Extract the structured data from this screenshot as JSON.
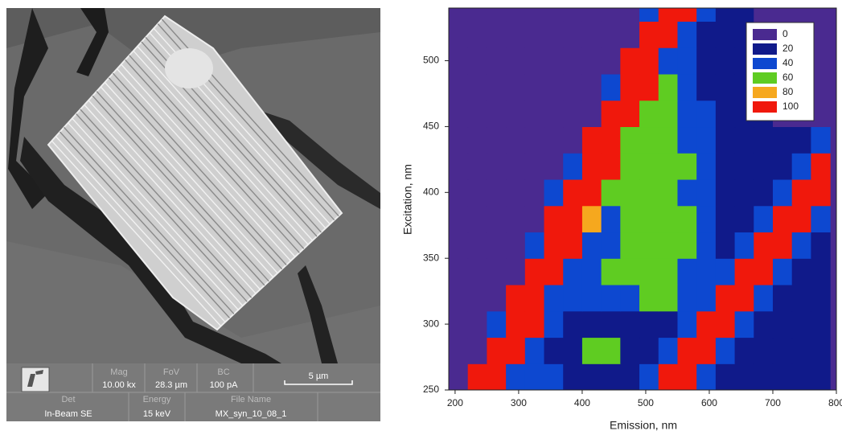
{
  "sem": {
    "info_bar": {
      "cells": [
        {
          "label": "Mag",
          "value": "10.00 kx"
        },
        {
          "label": "FoV",
          "value": "28.3 µm"
        },
        {
          "label": "BC",
          "value": "100 pA"
        },
        {
          "label": "Det",
          "value": "In-Beam SE"
        },
        {
          "label": "Energy",
          "value": "15 keV"
        },
        {
          "label": "File Name",
          "value": "MX_syn_10_08_1"
        }
      ],
      "scale_bar": "5 µm"
    }
  },
  "chart_data": {
    "type": "heatmap",
    "xlabel": "Emission, nm",
    "ylabel": "Excitation, nm",
    "x": [
      205,
      235,
      265,
      295,
      325,
      355,
      385,
      415,
      445,
      475,
      505,
      535,
      565,
      595,
      625,
      655,
      685,
      715,
      745,
      775
    ],
    "y": [
      260,
      280,
      300,
      320,
      340,
      360,
      380,
      400,
      420,
      440,
      460,
      480,
      500,
      520,
      540
    ],
    "z": [
      [
        0,
        100,
        100,
        40,
        40,
        40,
        20,
        20,
        20,
        20,
        40,
        100,
        100,
        40,
        20,
        20,
        20,
        20,
        20,
        20
      ],
      [
        0,
        0,
        100,
        100,
        40,
        20,
        20,
        60,
        60,
        20,
        20,
        40,
        100,
        100,
        40,
        20,
        20,
        20,
        20,
        20
      ],
      [
        0,
        0,
        40,
        100,
        100,
        40,
        20,
        20,
        20,
        20,
        20,
        20,
        40,
        100,
        100,
        40,
        20,
        20,
        20,
        20
      ],
      [
        0,
        0,
        0,
        100,
        100,
        40,
        40,
        40,
        40,
        40,
        60,
        60,
        40,
        40,
        100,
        100,
        40,
        20,
        20,
        20
      ],
      [
        0,
        0,
        0,
        0,
        100,
        100,
        40,
        40,
        60,
        60,
        60,
        60,
        40,
        40,
        40,
        100,
        100,
        40,
        20,
        20
      ],
      [
        0,
        0,
        0,
        0,
        40,
        100,
        100,
        40,
        40,
        60,
        60,
        60,
        60,
        40,
        20,
        40,
        100,
        100,
        40,
        20
      ],
      [
        0,
        0,
        0,
        0,
        0,
        100,
        100,
        80,
        40,
        60,
        60,
        60,
        60,
        40,
        20,
        20,
        40,
        100,
        100,
        40
      ],
      [
        0,
        0,
        0,
        0,
        0,
        40,
        100,
        100,
        60,
        60,
        60,
        60,
        40,
        40,
        20,
        20,
        20,
        40,
        100,
        100
      ],
      [
        0,
        0,
        0,
        0,
        0,
        0,
        40,
        100,
        100,
        60,
        60,
        60,
        60,
        40,
        20,
        20,
        20,
        20,
        40,
        100
      ],
      [
        0,
        0,
        0,
        0,
        0,
        0,
        0,
        100,
        100,
        60,
        60,
        60,
        40,
        40,
        20,
        20,
        20,
        20,
        20,
        40
      ],
      [
        0,
        0,
        0,
        0,
        0,
        0,
        0,
        0,
        100,
        100,
        60,
        60,
        40,
        40,
        20,
        20,
        20,
        0,
        0,
        0
      ],
      [
        0,
        0,
        0,
        0,
        0,
        0,
        0,
        0,
        40,
        100,
        100,
        60,
        40,
        20,
        20,
        20,
        20,
        0,
        0,
        0
      ],
      [
        0,
        0,
        0,
        0,
        0,
        0,
        0,
        0,
        0,
        100,
        100,
        40,
        40,
        20,
        20,
        20,
        0,
        0,
        0,
        0
      ],
      [
        0,
        0,
        0,
        0,
        0,
        0,
        0,
        0,
        0,
        0,
        100,
        100,
        40,
        20,
        20,
        20,
        0,
        0,
        0,
        0
      ],
      [
        0,
        0,
        0,
        0,
        0,
        0,
        0,
        0,
        0,
        0,
        40,
        100,
        100,
        40,
        20,
        20,
        0,
        0,
        0,
        0
      ]
    ],
    "xlim": [
      190,
      800
    ],
    "ylim": [
      250,
      540
    ],
    "xticks": [
      200,
      300,
      400,
      500,
      600,
      700,
      800
    ],
    "yticks": [
      250,
      300,
      350,
      400,
      450,
      500
    ],
    "legend": {
      "levels": [
        0,
        20,
        40,
        60,
        80,
        100
      ],
      "colors": [
        "#4a2a90",
        "#101a8a",
        "#0d48d0",
        "#5fcc22",
        "#f6a81e",
        "#f0180c"
      ]
    },
    "legend_position": "upper right"
  }
}
